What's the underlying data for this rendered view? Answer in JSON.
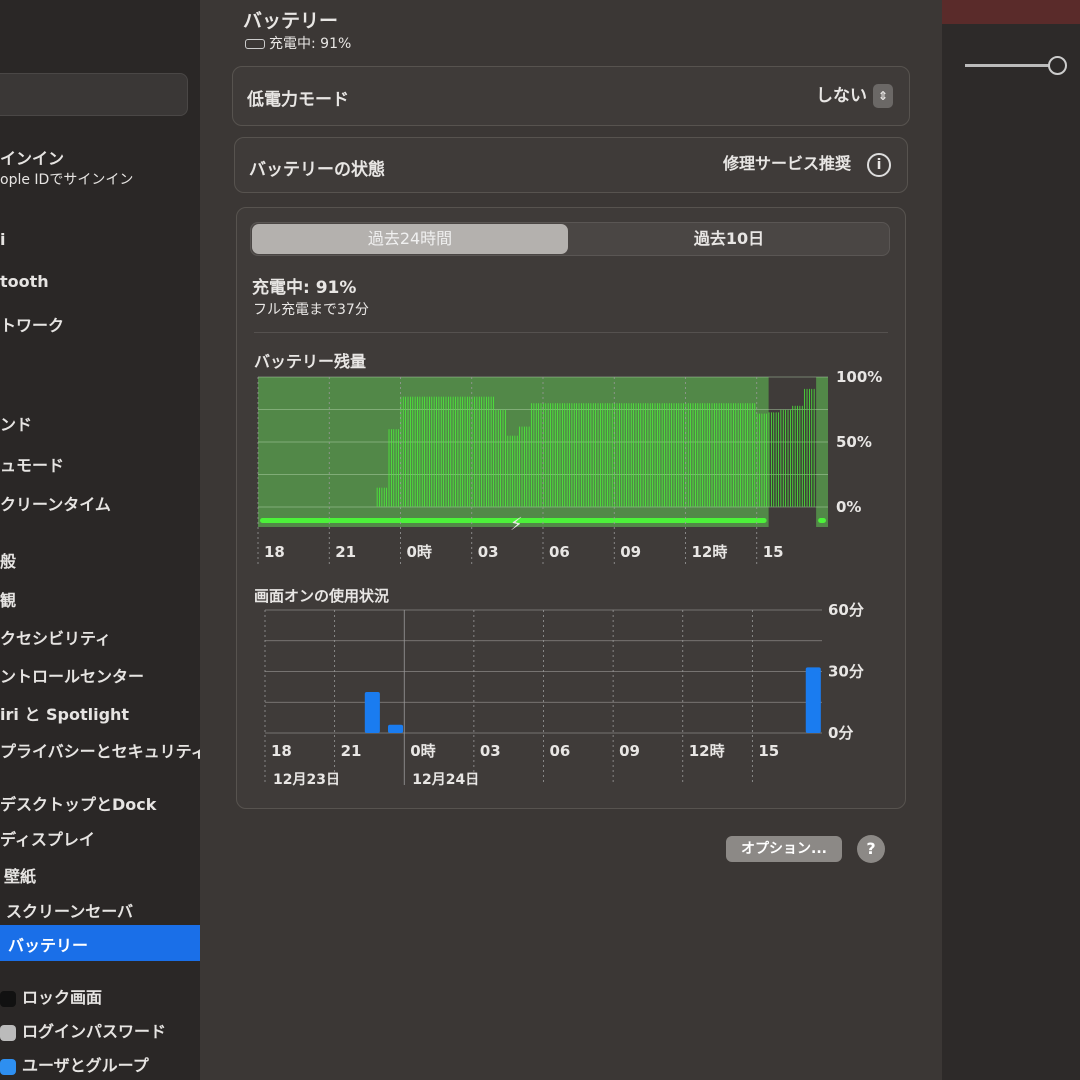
{
  "sidebar": {
    "items": [
      {
        "label": "サインイン",
        "sub": "Apple IDでサインイン",
        "visible": "インイン",
        "visible_sub": "ople IDでサインイン"
      },
      {
        "label": "i"
      },
      {
        "label": "tooth"
      },
      {
        "label": "トワーク"
      },
      {
        "label": "ンド"
      },
      {
        "label": "ュモード"
      },
      {
        "label": "クリーンタイム"
      },
      {
        "label": "般"
      },
      {
        "label": "観"
      },
      {
        "label": "クセシビリティ"
      },
      {
        "label": "ントロールセンター"
      },
      {
        "label": "iri と Spotlight"
      },
      {
        "label": "プライバシーとセキュリティ"
      },
      {
        "label": "デスクトップとDock"
      },
      {
        "label": "ディスプレイ"
      },
      {
        "label": "壁紙"
      },
      {
        "label": "スクリーンセーバ"
      },
      {
        "label": "バッテリー",
        "selected": true
      },
      {
        "label": "ロック画面"
      },
      {
        "label": "ログインパスワード"
      },
      {
        "label": "ユーザとグループ"
      }
    ],
    "selected_color": "#1a6fe8"
  },
  "header": {
    "title": "バッテリー",
    "status": "充電中: 91%",
    "status_icon": "battery-charging-icon"
  },
  "low_power": {
    "label": "低電力モード",
    "value": "しない"
  },
  "health": {
    "label": "バッテリーの状態",
    "value": "修理サービス推奨"
  },
  "tabs": [
    {
      "label": "過去24時間",
      "selected": true
    },
    {
      "label": "過去10日",
      "selected": false
    }
  ],
  "charge": {
    "status": "充電中: 91%",
    "remaining": "フル充電まで37分"
  },
  "chart_data": [
    {
      "type": "bar",
      "title": "バッテリー残量",
      "x_tick_labels": [
        "18",
        "21",
        "0時",
        "03",
        "06",
        "09",
        "12時",
        "15"
      ],
      "y_tick_labels": [
        "100%",
        "50%",
        "0%"
      ],
      "ylim": [
        0,
        100
      ],
      "interval_minutes": 30,
      "start": "18:00",
      "values": [
        0,
        0,
        0,
        0,
        0,
        0,
        0,
        0,
        0,
        0,
        15,
        60,
        85,
        85,
        85,
        85,
        85,
        85,
        85,
        85,
        75,
        55,
        62,
        80,
        80,
        80,
        80,
        80,
        80,
        80,
        80,
        80,
        80,
        80,
        80,
        80,
        80,
        80,
        80,
        80,
        80,
        80,
        72,
        73,
        75,
        78,
        91
      ],
      "charging_periods": [
        [
          "18:00",
          "15:30"
        ],
        [
          "17:30",
          "18:00"
        ]
      ],
      "bar_color": "#4cf23a",
      "charging_bg_color": "#5aa34e"
    },
    {
      "type": "bar",
      "title": "画面オンの使用状況",
      "x_tick_labels": [
        "18",
        "21",
        "0時",
        "03",
        "06",
        "09",
        "12時",
        "15"
      ],
      "date_labels": [
        "12月23日",
        "12月24日"
      ],
      "y_tick_labels": [
        "60分",
        "30分",
        "0分"
      ],
      "ylim": [
        0,
        60
      ],
      "bars": [
        {
          "time": "22:00",
          "minutes": 20
        },
        {
          "time": "23:00",
          "minutes": 4
        },
        {
          "time": "17:00",
          "minutes": 32
        }
      ],
      "bar_color": "#1a7cf0"
    }
  ],
  "footer": {
    "options_label": "オプション...",
    "help_label": "?"
  }
}
